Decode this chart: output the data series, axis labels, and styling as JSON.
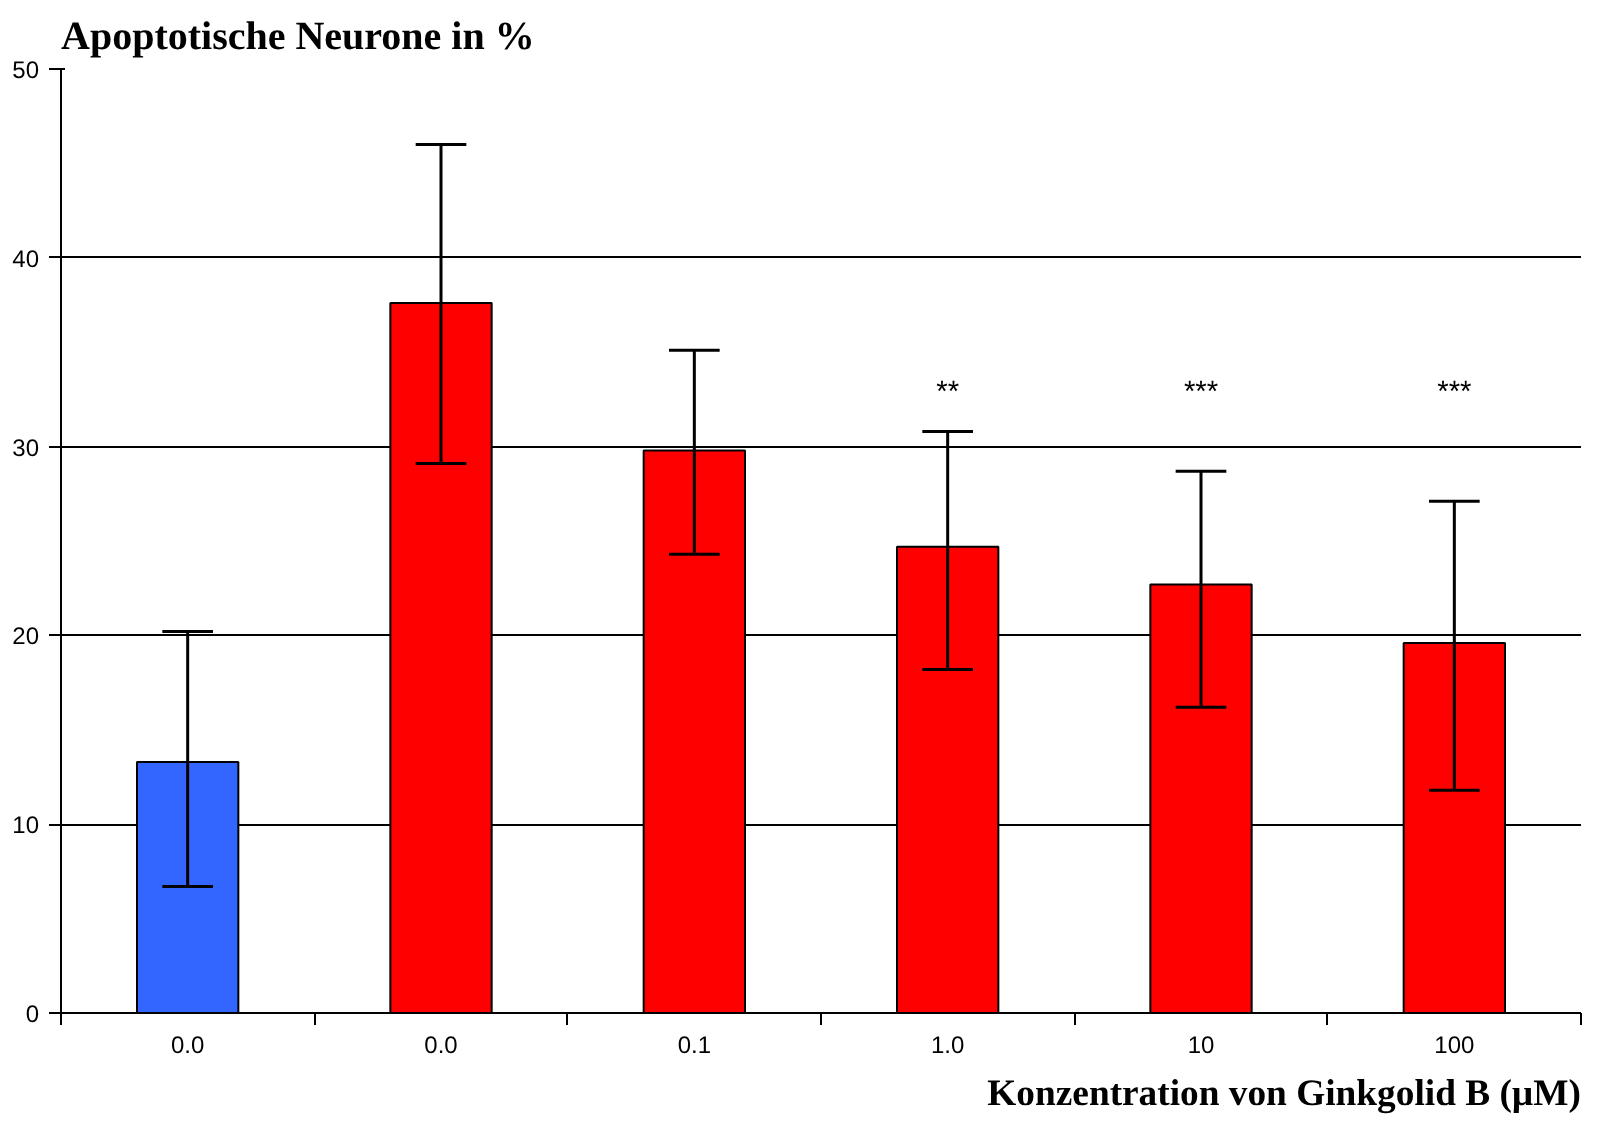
{
  "chart_data": {
    "type": "bar",
    "title": "Apoptotische Neurone in %",
    "xlabel": "Konzentration von Ginkgolid B (µM)",
    "categories": [
      "0.0",
      "0.0",
      "0.1",
      "1.0",
      "10",
      "100"
    ],
    "values": [
      13.3,
      37.6,
      29.8,
      24.7,
      22.7,
      19.6
    ],
    "colors": [
      "#3366ff",
      "#ff0000",
      "#ff0000",
      "#ff0000",
      "#ff0000",
      "#ff0000"
    ],
    "errors": [
      [
        6.7,
        20.2
      ],
      [
        29.1,
        46.0
      ],
      [
        24.3,
        35.1
      ],
      [
        18.2,
        30.8
      ],
      [
        16.2,
        28.7
      ],
      [
        11.8,
        27.1
      ]
    ],
    "ylim": [
      0,
      50
    ],
    "yticks": [
      0,
      10,
      20,
      30,
      40,
      50
    ],
    "grid": "y",
    "annotations": [
      "**",
      "***",
      "***"
    ]
  }
}
